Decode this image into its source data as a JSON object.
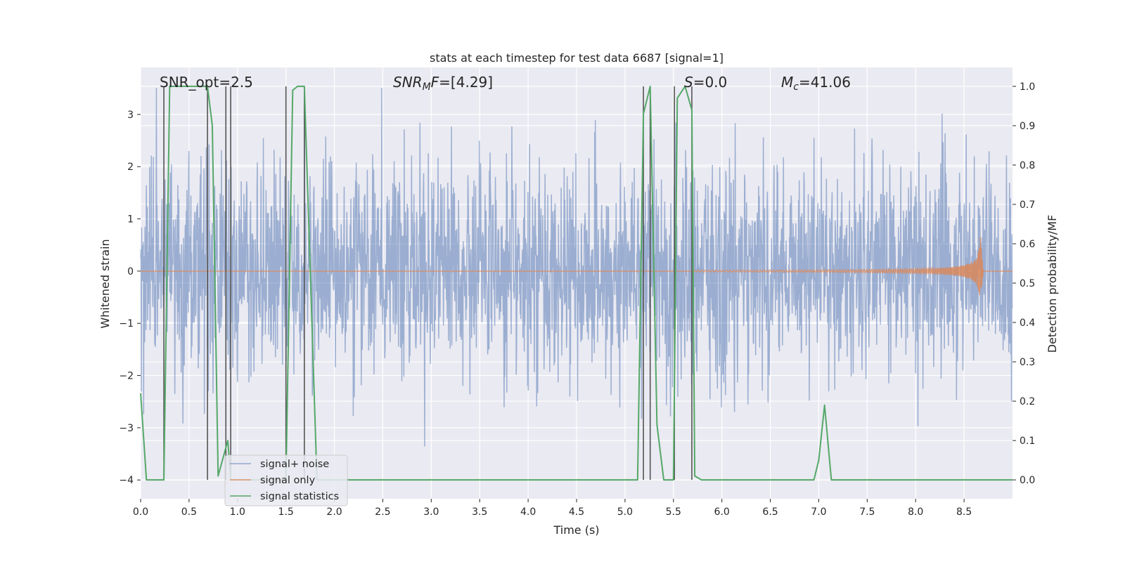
{
  "chart_data": {
    "type": "line",
    "title": "stats at each timestep for test data 6687 [signal=1]",
    "xlabel": "Time (s)",
    "ylabel_left": "Whitened strain",
    "ylabel_right": "Detection probability/MF",
    "xlim": [
      0.0,
      9.0
    ],
    "ylim_left": [
      -4.36,
      3.9
    ],
    "ylim_right": [
      -0.048,
      1.048
    ],
    "x_ticks": [
      0.0,
      0.5,
      1.0,
      1.5,
      2.0,
      2.5,
      3.0,
      3.5,
      4.0,
      4.5,
      5.0,
      5.5,
      6.0,
      6.5,
      7.0,
      7.5,
      8.0,
      8.5
    ],
    "x_tick_labels": [
      "0.0",
      "0.5",
      "1.0",
      "1.5",
      "2.0",
      "2.5",
      "3.0",
      "3.5",
      "4.0",
      "4.5",
      "5.0",
      "5.5",
      "6.0",
      "6.5",
      "7.0",
      "7.5",
      "8.0",
      "8.5"
    ],
    "y_left_ticks": [
      3,
      2,
      1,
      0,
      -1,
      -2,
      -3,
      -4
    ],
    "y_left_tick_labels": [
      "3",
      "2",
      "1",
      "0",
      "−1",
      "−2",
      "−3",
      "−4"
    ],
    "y_right_ticks": [
      1.0,
      0.9,
      0.8,
      0.7,
      0.6,
      0.5,
      0.4,
      0.3,
      0.2,
      0.1,
      0.0
    ],
    "y_right_tick_labels": [
      "1.0",
      "0.9",
      "0.8",
      "0.7",
      "0.6",
      "0.5",
      "0.4",
      "0.3",
      "0.2",
      "0.1",
      "0.0"
    ],
    "annotations": {
      "snr_opt": "SNR_opt=2.5",
      "snr_mf_sym": "SNR",
      "snr_mf_sub": "M",
      "snr_mf_f": "F",
      "snr_mf_val": "=[4.29]",
      "s_sym": "S",
      "s_val": "=0.0",
      "mc_sym": "M",
      "mc_sub": "c",
      "mc_val": "=41.06"
    },
    "series": [
      {
        "name": "signal+ noise",
        "color": "#4c72b0",
        "axis": "left",
        "kind": "noise",
        "duration": 9.0,
        "sigma": 1.0,
        "envelope_max": 3.5,
        "envelope_min": -3.4
      },
      {
        "name": "signal only",
        "color": "#dd8452",
        "axis": "left",
        "kind": "chirp",
        "merger_time": 8.67,
        "peak_amplitude": 0.65,
        "visible_from": 5.7
      },
      {
        "name": "signal statistics",
        "color": "#55a868",
        "axis": "right",
        "x": [
          0.0,
          0.06,
          0.24,
          0.3,
          0.5,
          0.69,
          0.74,
          0.8,
          0.9,
          0.93,
          1.02,
          1.1,
          1.5,
          1.57,
          1.62,
          1.69,
          1.82,
          2.0,
          3.0,
          3.1,
          4.0,
          5.0,
          5.13,
          5.19,
          5.26,
          5.33,
          5.4,
          5.5,
          5.54,
          5.62,
          5.69,
          5.72,
          5.79,
          5.9,
          6.0,
          6.5,
          6.95,
          7.0,
          7.06,
          7.13,
          7.5,
          9.0
        ],
        "y": [
          0.22,
          0.0,
          0.0,
          1.0,
          1.0,
          1.0,
          0.9,
          0.01,
          0.1,
          0.0,
          0.0,
          0.0,
          0.0,
          0.99,
          1.0,
          1.0,
          0.0,
          0.0,
          0.0,
          0.0,
          0.0,
          0.0,
          0.0,
          0.93,
          1.0,
          0.14,
          0.0,
          0.0,
          0.97,
          1.0,
          0.94,
          0.01,
          0.0,
          0.0,
          0.0,
          0.0,
          0.0,
          0.05,
          0.19,
          0.0,
          0.0,
          0.0
        ]
      }
    ],
    "vertical_lines": {
      "color": "#555555",
      "x": [
        0.24,
        0.69,
        0.88,
        0.93,
        1.5,
        1.69,
        5.19,
        5.26,
        5.51,
        5.69
      ],
      "right_axis_top": 1.0,
      "right_axis_bottom": 0.0
    },
    "legend": {
      "position": "lower-left",
      "entries": [
        "signal+ noise",
        "signal only",
        "signal statistics"
      ]
    },
    "grid": true
  }
}
